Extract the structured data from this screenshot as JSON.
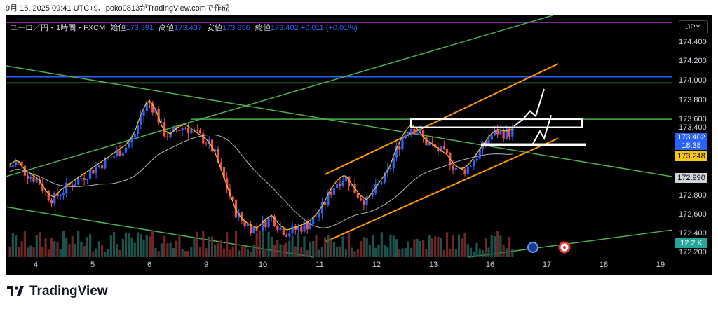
{
  "header": {
    "attribution": "9月 16, 2025 09:41 UTC+9、poko0813がTradingView.comで作成"
  },
  "legend": {
    "symbol": "ユーロ／円・1時間・FXCM",
    "open_label": "始値",
    "open": "173.391",
    "high_label": "高値",
    "high": "173.437",
    "low_label": "安値",
    "low": "173.356",
    "close_label": "終値",
    "close": "173.402",
    "change": "+0.011 (+0.01%)"
  },
  "currency_button": "JPY",
  "brand": {
    "name": "TradingView"
  },
  "colors": {
    "up": "#2962ff",
    "down": "#ef5350",
    "trend": "#4caf50",
    "channel": "#ff9800",
    "level": "#2962ff",
    "purple": "#9c27b0"
  },
  "chart_data": {
    "type": "candlestick",
    "x_tick_labels": [
      "4",
      "5",
      "6",
      "9",
      "10",
      "11",
      "12",
      "13",
      "16",
      "17",
      "18",
      "19"
    ],
    "y_tick_labels": [
      "174.400",
      "174.200",
      "174.000",
      "173.800",
      "173.600",
      "173.400",
      "172.800",
      "172.600",
      "172.400",
      "172.200"
    ],
    "ylim": [
      172.15,
      174.55
    ],
    "badges": {
      "last_price": "173.402",
      "countdown": "18:38",
      "ma_value": "173.248",
      "other_value": "172.990",
      "volume": "12.2 K"
    },
    "horizontal_levels": [
      174.48,
      173.94,
      173.88,
      173.52
    ],
    "close_path": [
      173.05,
      173.1,
      173.0,
      172.95,
      172.9,
      172.78,
      172.72,
      172.8,
      172.85,
      172.9,
      172.95,
      173.0,
      173.05,
      173.1,
      173.15,
      173.2,
      173.25,
      173.35,
      173.55,
      173.7,
      173.6,
      173.4,
      173.35,
      173.42,
      173.45,
      173.4,
      173.35,
      173.3,
      173.2,
      173.0,
      172.8,
      172.6,
      172.5,
      172.45,
      172.42,
      172.5,
      172.55,
      172.45,
      172.4,
      172.42,
      172.45,
      172.48,
      172.55,
      172.65,
      172.8,
      172.9,
      172.95,
      172.85,
      172.75,
      172.7,
      172.8,
      172.9,
      173.0,
      173.2,
      173.35,
      173.45,
      173.4,
      173.3,
      173.25,
      173.2,
      173.15,
      173.05,
      173.0,
      173.05,
      173.15,
      173.25,
      173.35,
      173.4,
      173.38,
      173.4
    ]
  }
}
